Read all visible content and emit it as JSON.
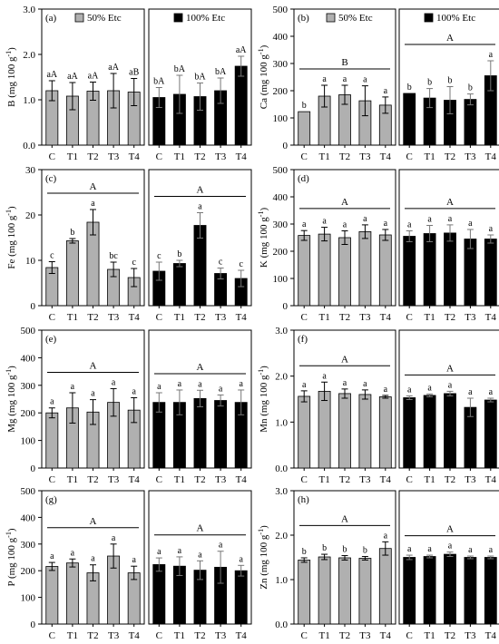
{
  "legend": {
    "low": {
      "label": "50% Etc",
      "color": "#b0b0b0"
    },
    "high": {
      "label": "100% Etc",
      "color": "#000000"
    }
  },
  "categories": [
    "C",
    "T1",
    "T2",
    "T3",
    "T4"
  ],
  "chart_data": [
    {
      "panel": "(a)",
      "type": "bar",
      "ylabel": "B  (mg 100 g",
      "ylabel_sup": "-1",
      "ylabel_close": ")",
      "ylim": [
        0,
        3
      ],
      "yticks": [
        "0.0",
        "1.0",
        "2.0",
        "3.0"
      ],
      "yticks_values": [
        0,
        1,
        2,
        3
      ],
      "has_legend": true,
      "low": {
        "values": [
          1.2,
          1.08,
          1.19,
          1.2,
          1.17
        ],
        "errors": [
          0.22,
          0.3,
          0.2,
          0.38,
          0.3
        ],
        "letters": [
          "aA",
          "aA",
          "aA",
          "aA",
          "aB"
        ],
        "group_letter": ""
      },
      "high": {
        "values": [
          1.05,
          1.12,
          1.07,
          1.2,
          1.74
        ],
        "errors": [
          0.22,
          0.42,
          0.3,
          0.28,
          0.22
        ],
        "letters": [
          "bA",
          "bA",
          "bA",
          "bA",
          "aA"
        ],
        "group_letter": ""
      }
    },
    {
      "panel": "(b)",
      "type": "bar",
      "ylabel": "Ca  (mg 100 g",
      "ylabel_sup": "-1",
      "ylabel_close": ")",
      "ylim": [
        0,
        500
      ],
      "yticks": [
        "0",
        "100",
        "200",
        "300",
        "400",
        "500"
      ],
      "yticks_values": [
        0,
        100,
        200,
        300,
        400,
        500
      ],
      "has_legend": true,
      "low": {
        "values": [
          123,
          180,
          185,
          163,
          147
        ],
        "errors": [
          0,
          40,
          35,
          55,
          30
        ],
        "letters": [
          "b",
          "a",
          "a",
          "a",
          "a"
        ],
        "group_letter": "B"
      },
      "high": {
        "values": [
          190,
          173,
          165,
          168,
          255
        ],
        "errors": [
          0,
          35,
          50,
          20,
          55
        ],
        "letters": [
          "b",
          "b",
          "b",
          "b",
          "a"
        ],
        "group_letter": "A"
      }
    },
    {
      "panel": "(c)",
      "type": "bar",
      "ylabel": "Fe  (mg 100 g",
      "ylabel_sup": "-1",
      "ylabel_close": ")",
      "ylim": [
        0,
        30
      ],
      "yticks": [
        "0",
        "10",
        "20",
        "30"
      ],
      "yticks_values": [
        0,
        10,
        20,
        30
      ],
      "has_legend": false,
      "low": {
        "values": [
          8.4,
          14.3,
          18.4,
          8.0,
          6.2
        ],
        "errors": [
          1.3,
          0.5,
          2.8,
          1.6,
          2.0
        ],
        "letters": [
          "c",
          "b",
          "a",
          "bc",
          "c"
        ],
        "group_letter": "A"
      },
      "high": {
        "values": [
          7.6,
          9.3,
          17.7,
          7.1,
          6.0
        ],
        "errors": [
          2.0,
          0.7,
          2.8,
          1.2,
          1.8
        ],
        "letters": [
          "c",
          "b",
          "a",
          "c",
          "c"
        ],
        "group_letter": "A"
      }
    },
    {
      "panel": "(d)",
      "type": "bar",
      "ylabel": "K  (mg 100 g",
      "ylabel_sup": "-1",
      "ylabel_close": ")",
      "ylim": [
        0,
        500
      ],
      "yticks": [
        "0",
        "100",
        "200",
        "300",
        "400",
        "500"
      ],
      "yticks_values": [
        0,
        100,
        200,
        300,
        400,
        500
      ],
      "has_legend": false,
      "low": {
        "values": [
          258,
          263,
          250,
          272,
          260
        ],
        "errors": [
          18,
          25,
          25,
          25,
          20
        ],
        "letters": [
          "a",
          "a",
          "a",
          "a",
          "a"
        ],
        "group_letter": "A"
      },
      "high": {
        "values": [
          255,
          265,
          267,
          245,
          245
        ],
        "errors": [
          20,
          30,
          30,
          35,
          15
        ],
        "letters": [
          "a",
          "a",
          "a",
          "a",
          "a"
        ],
        "group_letter": "A"
      }
    },
    {
      "panel": "(e)",
      "type": "bar",
      "ylabel": "Mg  (mg 100 g",
      "ylabel_sup": "-1",
      "ylabel_close": ")",
      "ylim": [
        0,
        500
      ],
      "yticks": [
        "0",
        "100",
        "200",
        "300",
        "400",
        "500"
      ],
      "yticks_values": [
        0,
        100,
        200,
        300,
        400,
        500
      ],
      "has_legend": false,
      "low": {
        "values": [
          200,
          218,
          203,
          238,
          210
        ],
        "errors": [
          18,
          55,
          45,
          50,
          45
        ],
        "letters": [
          "a",
          "a",
          "a",
          "a",
          "a"
        ],
        "group_letter": "A"
      },
      "high": {
        "values": [
          238,
          238,
          252,
          245,
          238
        ],
        "errors": [
          35,
          45,
          30,
          20,
          45
        ],
        "letters": [
          "a",
          "a",
          "a",
          "a",
          "a"
        ],
        "group_letter": "A"
      }
    },
    {
      "panel": "(f)",
      "type": "bar",
      "ylabel": "Mn  (mg 100 g",
      "ylabel_sup": "-1",
      "ylabel_close": ")",
      "ylim": [
        0,
        3
      ],
      "yticks": [
        "0.0",
        "1.0",
        "2.0",
        "3.0"
      ],
      "yticks_values": [
        0,
        1,
        2,
        3
      ],
      "has_legend": false,
      "low": {
        "values": [
          1.56,
          1.67,
          1.62,
          1.6,
          1.55
        ],
        "errors": [
          0.12,
          0.2,
          0.1,
          0.1,
          0.03
        ],
        "letters": [
          "a",
          "a",
          "a",
          "a",
          "a"
        ],
        "group_letter": "A"
      },
      "high": {
        "values": [
          1.53,
          1.58,
          1.62,
          1.32,
          1.48
        ],
        "errors": [
          0.04,
          0.03,
          0.05,
          0.2,
          0.04
        ],
        "letters": [
          "a",
          "a",
          "a",
          "a",
          "a"
        ],
        "group_letter": "A"
      }
    },
    {
      "panel": "(g)",
      "type": "bar",
      "ylabel": "P  (mg 100 g",
      "ylabel_sup": "-1",
      "ylabel_close": ")",
      "ylim": [
        0,
        500
      ],
      "yticks": [
        "0",
        "100",
        "200",
        "300",
        "400",
        "500"
      ],
      "yticks_values": [
        0,
        100,
        200,
        300,
        400,
        500
      ],
      "has_legend": false,
      "low": {
        "values": [
          216,
          229,
          192,
          255,
          192
        ],
        "errors": [
          15,
          15,
          30,
          45,
          25
        ],
        "letters": [
          "a",
          "a",
          "a",
          "a",
          "a"
        ],
        "group_letter": "A"
      },
      "high": {
        "values": [
          223,
          217,
          202,
          213,
          200
        ],
        "errors": [
          25,
          35,
          35,
          60,
          20
        ],
        "letters": [
          "a",
          "a",
          "a",
          "a",
          "a"
        ],
        "group_letter": "A"
      }
    },
    {
      "panel": "(h)",
      "type": "bar",
      "ylabel": "Zn  (mg 100 g",
      "ylabel_sup": "-1",
      "ylabel_close": ")",
      "ylim": [
        0,
        3
      ],
      "yticks": [
        "0.0",
        "1.0",
        "2.0",
        "3.0"
      ],
      "yticks_values": [
        0,
        1,
        2,
        3
      ],
      "has_legend": false,
      "low": {
        "values": [
          1.44,
          1.51,
          1.49,
          1.48,
          1.7
        ],
        "errors": [
          0.05,
          0.06,
          0.05,
          0.04,
          0.15
        ],
        "letters": [
          "b",
          "b",
          "b",
          "b",
          "a"
        ],
        "group_letter": "A"
      },
      "high": {
        "values": [
          1.5,
          1.52,
          1.57,
          1.5,
          1.5
        ],
        "errors": [
          0.05,
          0.03,
          0.05,
          0.03,
          0.03
        ],
        "letters": [
          "a",
          "a",
          "a",
          "a",
          "a"
        ],
        "group_letter": "A"
      }
    }
  ]
}
